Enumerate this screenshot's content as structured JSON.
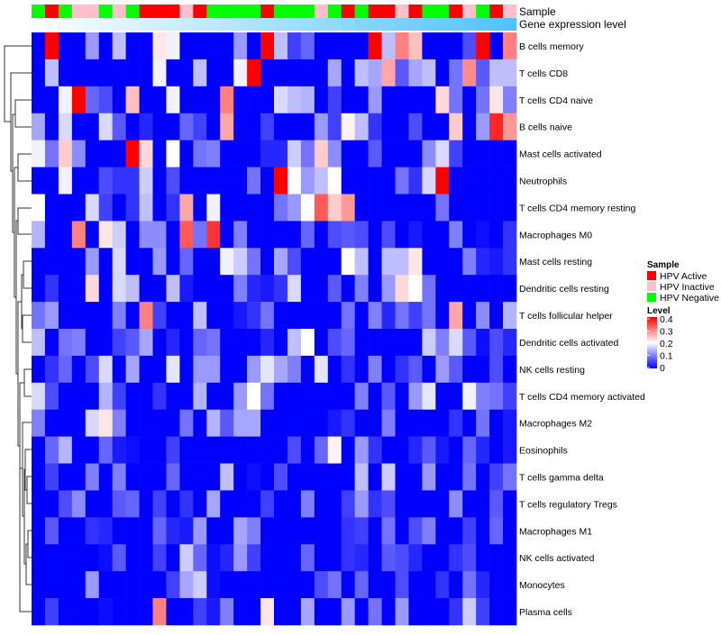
{
  "chart_data": {
    "type": "heatmap",
    "title": "",
    "annotation_labels": {
      "sample": "Sample",
      "gene_expression": "Gene expression level"
    },
    "rows": [
      "B cells memory",
      "T cells CD8",
      "T cells CD4 naive",
      "B cells naive",
      "Mast cells activated",
      "Neutrophils",
      "T cells CD4 memory resting",
      "Macrophages M0",
      "Mast cells resting",
      "Dendritic cells resting",
      "T cells follicular helper",
      "Dendritic cells activated",
      "NK cells resting",
      "T cells CD4 memory activated",
      "Macrophages M2",
      "Eosinophils",
      "T cells gamma delta",
      "T cells regulatory  Tregs",
      "Macrophages M1",
      "NK cells activated",
      "Monocytes",
      "Plasma cells"
    ],
    "sample_groups": [
      "HPV Negative",
      "HPV Active",
      "HPV Negative",
      "HPV Inactive",
      "HPV Inactive",
      "HPV Negative",
      "HPV Inactive",
      "HPV Negative",
      "HPV Active",
      "HPV Active",
      "HPV Active",
      "HPV Inactive",
      "HPV Active",
      "HPV Negative",
      "HPV Negative",
      "HPV Negative",
      "HPV Negative",
      "HPV Active",
      "HPV Negative",
      "HPV Negative",
      "HPV Negative",
      "HPV Inactive",
      "HPV Negative",
      "HPV Active",
      "HPV Negative",
      "HPV Active",
      "HPV Active",
      "HPV Inactive",
      "HPV Active",
      "HPV Negative",
      "HPV Negative",
      "HPV Active",
      "HPV Inactive",
      "HPV Negative",
      "HPV Active",
      "HPV Inactive"
    ],
    "gene_expression_range": [
      0,
      1
    ],
    "values": [
      [
        0,
        0.4,
        0,
        0,
        0.12,
        0,
        0.15,
        0,
        0,
        0.22,
        0.19,
        0,
        0,
        0,
        0,
        0.12,
        0,
        0.4,
        0.15,
        0.05,
        0.08,
        0,
        0,
        0,
        0,
        0.4,
        0.15,
        0.3,
        0.25,
        0,
        0,
        0,
        0.06,
        0.4,
        0,
        0.3
      ],
      [
        0,
        0.15,
        0,
        0,
        0,
        0,
        0,
        0,
        0,
        0.19,
        0,
        0,
        0.15,
        0,
        0,
        0.19,
        0.4,
        0,
        0,
        0,
        0,
        0,
        0.13,
        0,
        0.15,
        0.13,
        0.27,
        0.07,
        0.13,
        0.15,
        0,
        0.09,
        0.29,
        0.07,
        0.15,
        0.15
      ],
      [
        0,
        0,
        0.19,
        0.4,
        0.08,
        0.06,
        0,
        0.25,
        0,
        0,
        0.19,
        0,
        0,
        0,
        0.3,
        0,
        0,
        0,
        0.17,
        0.15,
        0.14,
        0,
        0.05,
        0,
        0,
        0.12,
        0,
        0,
        0,
        0,
        0.23,
        0.09,
        0,
        0.09,
        0.22,
        0.1
      ],
      [
        0.13,
        0,
        0.17,
        0,
        0,
        0.17,
        0.07,
        0,
        0.03,
        0,
        0,
        0.08,
        0.05,
        0,
        0.27,
        0,
        0,
        0.05,
        0,
        0,
        0,
        0.12,
        0.05,
        0.21,
        0.15,
        0.04,
        0,
        0,
        0.06,
        0,
        0,
        0.24,
        0,
        0.12,
        0.37,
        0.28
      ],
      [
        0.19,
        0.09,
        0.24,
        0.11,
        0,
        0,
        0,
        0.4,
        0.23,
        0,
        0.2,
        0,
        0.09,
        0.1,
        0,
        0,
        0,
        0.03,
        0.03,
        0.16,
        0.09,
        0.24,
        0.11,
        0,
        0,
        0.07,
        0,
        0,
        0,
        0.11,
        0.17,
        0.05,
        0,
        0,
        0,
        0
      ],
      [
        0,
        0,
        0.19,
        0,
        0,
        0.06,
        0.04,
        0.04,
        0.16,
        0,
        0.06,
        0,
        0,
        0,
        0,
        0,
        0.09,
        0,
        0.4,
        0.2,
        0.12,
        0.15,
        0.2,
        0,
        0,
        0,
        0,
        0.09,
        0.04,
        0.17,
        0.4,
        0,
        0,
        0,
        0,
        0
      ],
      [
        0.2,
        0,
        0,
        0,
        0.17,
        0.05,
        0,
        0.04,
        0.15,
        0,
        0.04,
        0.27,
        0,
        0.19,
        0,
        0,
        0,
        0,
        0.09,
        0.12,
        0.2,
        0.33,
        0.24,
        0.28,
        0,
        0,
        0,
        0,
        0,
        0,
        0.09,
        0,
        0,
        0,
        0,
        0
      ],
      [
        0.14,
        0,
        0,
        0.3,
        0,
        0.22,
        0.16,
        0,
        0.11,
        0.11,
        0,
        0.33,
        0.09,
        0.36,
        0,
        0.1,
        0,
        0,
        0,
        0,
        0.08,
        0,
        0.06,
        0.07,
        0.06,
        0,
        0.06,
        0,
        0.02,
        0,
        0,
        0.1,
        0,
        0.01,
        0,
        0.04
      ],
      [
        0,
        0,
        0,
        0,
        0.12,
        0,
        0.17,
        0,
        0,
        0.12,
        0,
        0.08,
        0,
        0,
        0.19,
        0.16,
        0.09,
        0,
        0.13,
        0.06,
        0,
        0,
        0,
        0.2,
        0.15,
        0,
        0.15,
        0.15,
        0.22,
        0,
        0,
        0,
        0.1,
        0.03,
        0.02,
        0.04
      ],
      [
        0,
        0.04,
        0,
        0,
        0.23,
        0,
        0.17,
        0.15,
        0,
        0,
        0.15,
        0.02,
        0,
        0,
        0,
        0.1,
        0.03,
        0.02,
        0.04,
        0.17,
        0,
        0,
        0.07,
        0,
        0.1,
        0,
        0.12,
        0.23,
        0.2,
        0.09,
        0,
        0,
        0,
        0,
        0,
        0
      ],
      [
        0.09,
        0.12,
        0,
        0,
        0,
        0,
        0.1,
        0,
        0.3,
        0.05,
        0,
        0,
        0.15,
        0,
        0,
        0.02,
        0.04,
        0.09,
        0,
        0,
        0,
        0,
        0,
        0.09,
        0,
        0.1,
        0.03,
        0.09,
        0.05,
        0.09,
        0,
        0.27,
        0,
        0.11,
        0,
        0.14
      ],
      [
        0.15,
        0,
        0.09,
        0.1,
        0,
        0,
        0.05,
        0.07,
        0.13,
        0,
        0.03,
        0,
        0.08,
        0.09,
        0,
        0,
        0,
        0.03,
        0,
        0.15,
        0.2,
        0,
        0.06,
        0.08,
        0,
        0,
        0,
        0,
        0,
        0.16,
        0.1,
        0.17,
        0.07,
        0.01,
        0.06,
        0.03
      ],
      [
        0,
        0.04,
        0.08,
        0,
        0.06,
        0.17,
        0,
        0.13,
        0,
        0,
        0.18,
        0,
        0.12,
        0.12,
        0,
        0,
        0.12,
        0.18,
        0.13,
        0.1,
        0,
        0.18,
        0,
        0.04,
        0,
        0.1,
        0,
        0.04,
        0.07,
        0,
        0.12,
        0.07,
        0,
        0,
        0.06,
        0
      ],
      [
        0.17,
        0.06,
        0,
        0,
        0,
        0.14,
        0.05,
        0,
        0,
        0.04,
        0,
        0,
        0.14,
        0,
        0,
        0.12,
        0.2,
        0.09,
        0,
        0,
        0,
        0,
        0,
        0,
        0.1,
        0,
        0.07,
        0,
        0.12,
        0.18,
        0,
        0,
        0.19,
        0.1,
        0.09,
        0.05
      ],
      [
        0.1,
        0,
        0,
        0,
        0.17,
        0.22,
        0.1,
        0,
        0,
        0,
        0,
        0.09,
        0,
        0.14,
        0.07,
        0.13,
        0.13,
        0,
        0,
        0,
        0,
        0,
        0.02,
        0.04,
        0,
        0,
        0.1,
        0,
        0,
        0,
        0,
        0.04,
        0,
        0.09,
        0,
        0.02
      ],
      [
        0,
        0.08,
        0.14,
        0,
        0,
        0.08,
        0.02,
        0.01,
        0,
        0,
        0.05,
        0,
        0,
        0,
        0,
        0,
        0,
        0,
        0,
        0.06,
        0,
        0.08,
        0.21,
        0,
        0.12,
        0.04,
        0,
        0,
        0.03,
        0.07,
        0.02,
        0,
        0.08,
        0.03,
        0,
        0.02
      ],
      [
        0,
        0.05,
        0,
        0,
        0.1,
        0,
        0.1,
        0,
        0,
        0,
        0.08,
        0,
        0,
        0,
        0.15,
        0,
        0.01,
        0,
        0.06,
        0,
        0,
        0,
        0,
        0,
        0.15,
        0,
        0.16,
        0,
        0,
        0.12,
        0,
        0,
        0.09,
        0,
        0.05,
        0.09
      ],
      [
        0,
        0,
        0.06,
        0.11,
        0,
        0,
        0.07,
        0.08,
        0,
        0.05,
        0,
        0.04,
        0,
        0.13,
        0,
        0,
        0,
        0.05,
        0,
        0,
        0.1,
        0,
        0,
        0.05,
        0.12,
        0.04,
        0.06,
        0,
        0,
        0,
        0,
        0.11,
        0,
        0,
        0.07,
        0
      ],
      [
        0,
        0.07,
        0,
        0,
        0.04,
        0.03,
        0,
        0,
        0,
        0.08,
        0.03,
        0.02,
        0.12,
        0,
        0,
        0.13,
        0.1,
        0,
        0,
        0,
        0,
        0,
        0,
        0.04,
        0.05,
        0,
        0.09,
        0,
        0.06,
        0.1,
        0,
        0,
        0.05,
        0,
        0.08,
        0
      ],
      [
        0,
        0,
        0,
        0,
        0,
        0.01,
        0.07,
        0,
        0,
        0.05,
        0,
        0.16,
        0.08,
        0.01,
        0.03,
        0.12,
        0.05,
        0,
        0,
        0,
        0.08,
        0,
        0,
        0.04,
        0.03,
        0,
        0.07,
        0.06,
        0.03,
        0,
        0,
        0.04,
        0.06,
        0,
        0,
        0
      ],
      [
        0,
        0,
        0,
        0,
        0.12,
        0,
        0,
        0,
        0,
        0,
        0.05,
        0.13,
        0.16,
        0.01,
        0,
        0,
        0,
        0,
        0,
        0,
        0,
        0.06,
        0.09,
        0,
        0.08,
        0,
        0,
        0.06,
        0,
        0,
        0.04,
        0,
        0.09,
        0.03,
        0,
        0
      ],
      [
        0,
        0.05,
        0,
        0,
        0,
        0.01,
        0,
        0,
        0,
        0.3,
        0,
        0,
        0.05,
        0.02,
        0.1,
        0,
        0,
        0.22,
        0,
        0,
        0.13,
        0,
        0,
        0.12,
        0,
        0.09,
        0,
        0.12,
        0,
        0,
        0,
        0.04,
        0.16,
        0.05,
        0,
        0
      ]
    ],
    "color_scale": {
      "min": 0,
      "mid": 0.2,
      "max": 0.4,
      "low_color": "#0000ff",
      "mid_color": "#ffffff",
      "high_color": "#ff0000"
    },
    "legend": {
      "sample": {
        "title": "Sample",
        "items": [
          {
            "label": "HPV Active",
            "color": "#ff0000"
          },
          {
            "label": "HPV Inactive",
            "color": "#ffc0cb"
          },
          {
            "label": "HPV Negative",
            "color": "#00ff00"
          }
        ]
      },
      "level": {
        "title": "Level",
        "ticks": [
          "0.4",
          "0.3",
          "0.2",
          "0.1",
          "0"
        ]
      },
      "placement": "right"
    },
    "gene_expression_colors": [
      "#ffffff",
      "#4fc3f7"
    ],
    "row_dendrogram": true
  }
}
